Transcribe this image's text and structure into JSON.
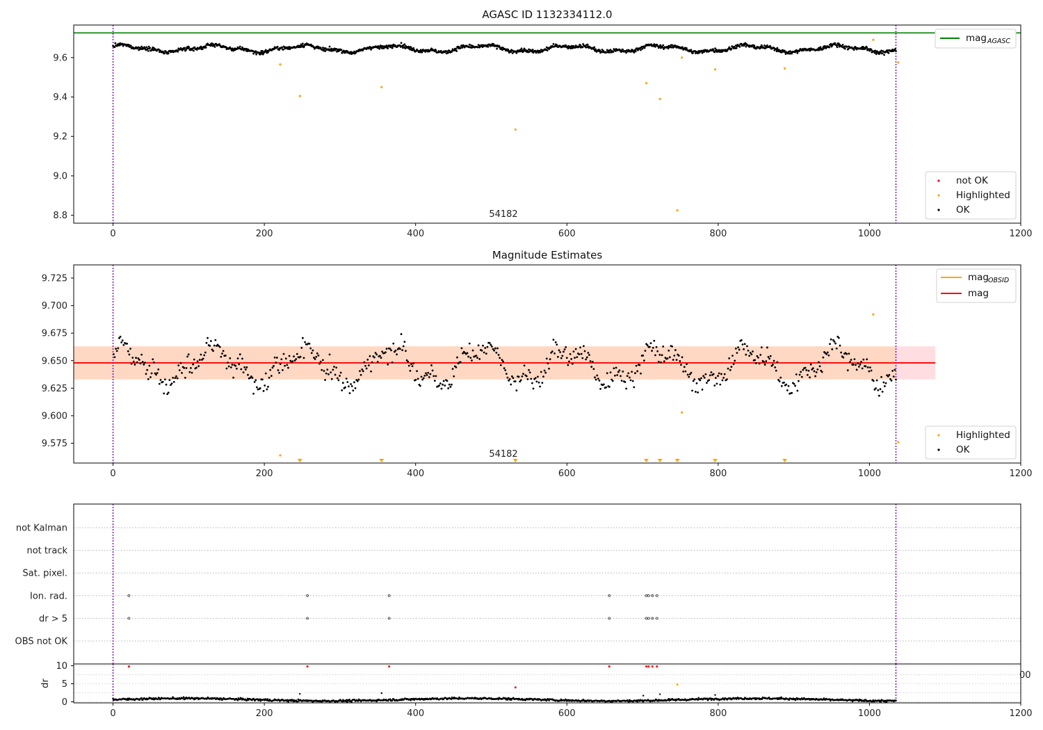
{
  "chart_data": [
    {
      "type": "scatter",
      "title": "AGASC ID 1132334112.0",
      "annotation": "54182",
      "xlim": [
        -52,
        1200
      ],
      "ylim": [
        8.76,
        9.765
      ],
      "xticks": [
        "0",
        "200",
        "400",
        "600",
        "800",
        "1000",
        "1200"
      ],
      "yticks": [
        "8.8",
        "9.0",
        "9.2",
        "9.4",
        "9.6"
      ],
      "vlines_x": [
        0,
        1035
      ],
      "reference_line": {
        "name": "mag_AGASC",
        "y": 9.725,
        "color": "#008000"
      },
      "ok_series": {
        "name": "OK",
        "color": "#000000",
        "x_range": [
          0,
          1035
        ],
        "baseline": 9.645
      },
      "not_ok_series": {
        "name": "not OK",
        "color": "#ff0000",
        "points": []
      },
      "highlighted_series": {
        "name": "Highlighted",
        "color": "#ffa500",
        "points": [
          [
            221,
            9.565
          ],
          [
            247,
            9.405
          ],
          [
            355,
            9.45
          ],
          [
            532,
            9.235
          ],
          [
            705,
            9.47
          ],
          [
            723,
            9.39
          ],
          [
            746,
            8.825
          ],
          [
            752,
            9.6
          ],
          [
            796,
            9.54
          ],
          [
            888,
            9.545
          ],
          [
            1005,
            9.69
          ],
          [
            1038,
            9.575
          ]
        ]
      },
      "legend_top": [
        {
          "label": "mag",
          "sub": "AGASC",
          "color": "#008000"
        }
      ],
      "legend_bottom": [
        {
          "label": "not OK",
          "color": "#ff0000"
        },
        {
          "label": "Highlighted",
          "color": "#ffa500"
        },
        {
          "label": "OK",
          "color": "#000000"
        }
      ]
    },
    {
      "type": "scatter",
      "title": "Magnitude Estimates",
      "annotation": "54182",
      "xlim": [
        -52,
        1200
      ],
      "ylim": [
        9.557,
        9.737
      ],
      "xticks": [
        "0",
        "200",
        "400",
        "600",
        "800",
        "1000",
        "1200"
      ],
      "yticks": [
        "9.575",
        "9.600",
        "9.625",
        "9.650",
        "9.675",
        "9.700",
        "9.725"
      ],
      "vlines_x": [
        0,
        1035
      ],
      "band_outer": [
        9.633,
        9.663
      ],
      "band_outer_color": "#ffdde0",
      "band_inner": [
        9.633,
        9.663
      ],
      "band_inner_color": "#ffd8c4",
      "band_x_range": [
        -52,
        1087
      ],
      "mag_line": {
        "name": "mag",
        "y": 9.648,
        "color": "#ff0000"
      },
      "obsid_line": {
        "name": "mag_OBSID",
        "color": "#ffa500"
      },
      "ok_series": {
        "name": "OK",
        "color": "#000000",
        "x_range": [
          0,
          1035
        ],
        "baseline": 9.645
      },
      "highlighted_series": {
        "name": "Highlighted",
        "color": "#ffa500",
        "points": [
          [
            221,
            9.564
          ],
          [
            752,
            9.603
          ],
          [
            1005,
            9.692
          ],
          [
            1038,
            9.576
          ]
        ]
      },
      "offscale_markers_x": [
        247,
        355,
        532,
        705,
        723,
        746,
        796,
        888
      ],
      "legend_top": [
        {
          "label": "mag",
          "sub": "OBSID",
          "color": "#ffa500"
        },
        {
          "label": "mag",
          "sub": "",
          "color": "#ff0000"
        }
      ],
      "legend_bottom": [
        {
          "label": "Highlighted",
          "color": "#ffa500"
        },
        {
          "label": "OK",
          "color": "#000000"
        }
      ]
    },
    {
      "type": "scatter",
      "title": "",
      "xlim": [
        -52,
        1200
      ],
      "vlines_x": [
        0,
        1035
      ],
      "flag_rows": [
        "not Kalman",
        "not track",
        "Sat. pixel.",
        "Ion. rad.",
        "dr > 5",
        "OBS not OK"
      ],
      "flag_points": [
        {
          "row": "Ion. rad.",
          "x": [
            21,
            257,
            365,
            656,
            705,
            708,
            713,
            719
          ]
        },
        {
          "row": "dr > 5",
          "x": [
            21,
            257,
            365,
            656,
            705,
            708,
            713,
            719
          ]
        }
      ]
    },
    {
      "type": "scatter",
      "title": "",
      "ylabel": "dr",
      "xlim": [
        -52,
        1200
      ],
      "ylim": [
        -0.3,
        10.5
      ],
      "xticks": [
        "0",
        "200",
        "400",
        "600",
        "800",
        "1000",
        "1200"
      ],
      "yticks": [
        "0",
        "5",
        "10"
      ],
      "stray_tick_label": "00",
      "vlines_x": [
        0,
        1035
      ],
      "ok_series": {
        "name": "OK",
        "color": "#000000",
        "x_range": [
          0,
          1035
        ],
        "baseline": 0.6
      },
      "not_ok_series": {
        "name": "not OK",
        "color": "#ff0000",
        "points": [
          [
            21,
            9.8
          ],
          [
            257,
            9.8
          ],
          [
            365,
            9.8
          ],
          [
            656,
            9.8
          ],
          [
            705,
            9.8
          ],
          [
            708,
            9.8
          ],
          [
            713,
            9.8
          ],
          [
            719,
            9.8
          ],
          [
            532,
            4.0
          ]
        ]
      },
      "highlighted_series": {
        "name": "Highlighted",
        "color": "#ffa500",
        "points": [
          [
            746,
            4.8
          ]
        ]
      },
      "outlier_points": [
        [
          247,
          2.2
        ],
        [
          355,
          2.4
        ],
        [
          701,
          1.7
        ],
        [
          723,
          2.1
        ],
        [
          796,
          1.9
        ]
      ]
    }
  ]
}
